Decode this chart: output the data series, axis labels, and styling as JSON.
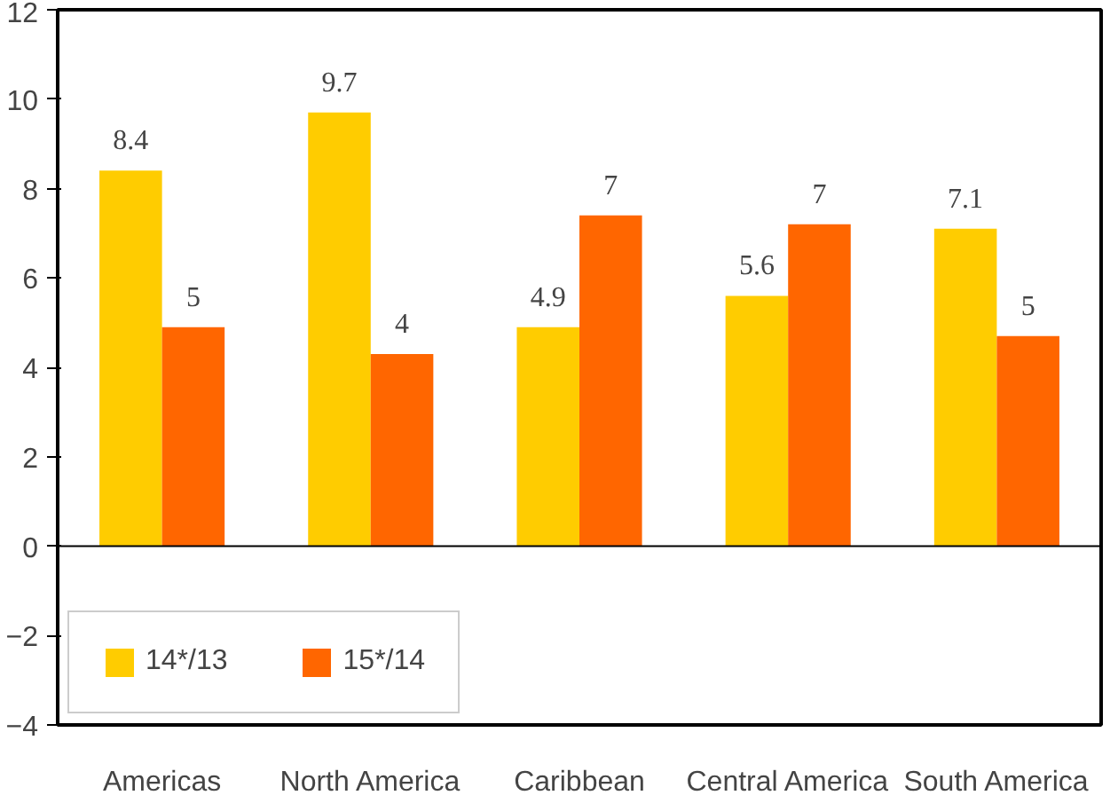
{
  "chart_data": {
    "type": "bar",
    "categories": [
      "Americas",
      "North America",
      "Caribbean",
      "Central America",
      "South America"
    ],
    "series": [
      {
        "name": "14*/13",
        "color": "#ffcc00",
        "values": [
          8.4,
          9.7,
          4.9,
          5.6,
          7.1
        ],
        "value_labels": [
          "8.4",
          "9.7",
          "4.9",
          "5.6",
          "7.1"
        ]
      },
      {
        "name": "15*/14",
        "color": "#ff6600",
        "values": [
          4.9,
          4.3,
          7.4,
          7.2,
          4.7
        ],
        "value_labels": [
          "5",
          "4",
          "7",
          "7",
          "5"
        ]
      }
    ],
    "ylim": [
      -4,
      12
    ],
    "yticks": [
      -4,
      -2,
      0,
      2,
      4,
      6,
      8,
      10,
      12
    ],
    "ref_lines": [
      {
        "axis": "y",
        "value": 0,
        "color": "#000000"
      }
    ],
    "legend": "bottom left"
  }
}
